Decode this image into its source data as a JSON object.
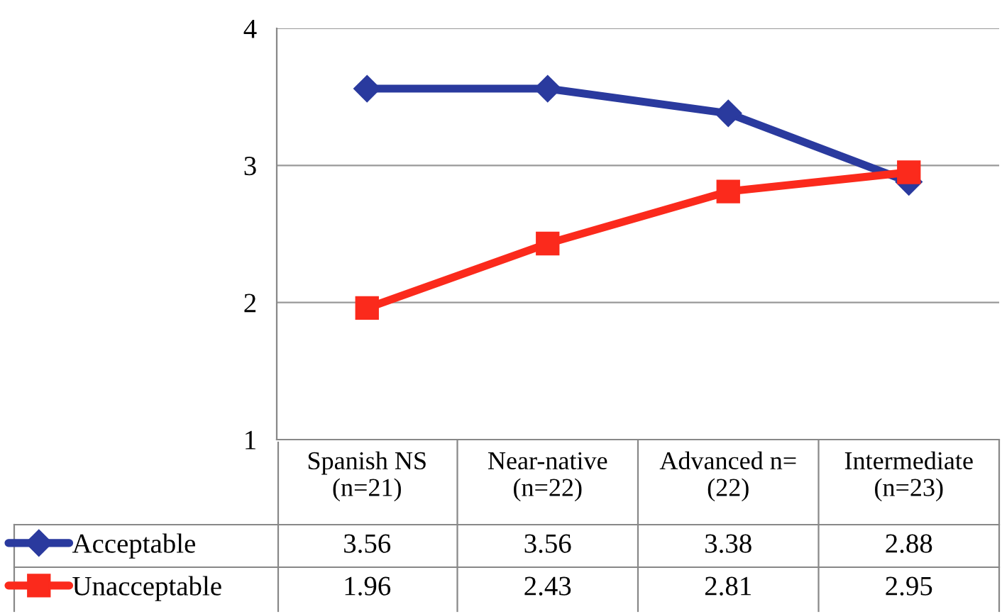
{
  "chart_data": {
    "type": "line",
    "categories": [
      "Spanish NS\n(n=21)",
      "Near-native\n(n=22)",
      "Advanced n=\n(22)",
      "Intermediate\n(n=23)"
    ],
    "series": [
      {
        "name": "Acceptable",
        "color": "#2a3a9e",
        "values": [
          3.56,
          3.56,
          3.38,
          2.88
        ],
        "marker": "diamond"
      },
      {
        "name": "Unacceptable",
        "color": "#fb2a1c",
        "values": [
          1.96,
          2.43,
          2.81,
          2.95
        ],
        "marker": "square"
      }
    ],
    "ylim": [
      1,
      4
    ],
    "yticks": [
      1,
      2,
      3,
      4
    ],
    "grid": "y",
    "legend": "bottom left",
    "data_labels": true,
    "line_style": "solid"
  }
}
